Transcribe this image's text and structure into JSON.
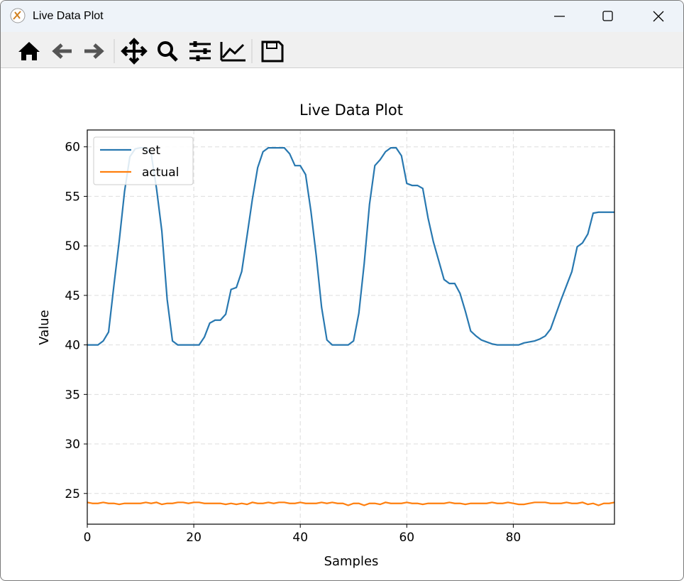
{
  "window": {
    "title": "Live Data Plot"
  },
  "chart_data": {
    "type": "line",
    "title": "Live Data Plot",
    "x_label": "Samples",
    "y_label": "Value",
    "x": [
      0,
      1,
      2,
      3,
      4,
      5,
      6,
      7,
      8,
      9,
      10,
      11,
      12,
      13,
      14,
      15,
      16,
      17,
      18,
      19,
      20,
      21,
      22,
      23,
      24,
      25,
      26,
      27,
      28,
      29,
      30,
      31,
      32,
      33,
      34,
      35,
      36,
      37,
      38,
      39,
      40,
      41,
      42,
      43,
      44,
      45,
      46,
      47,
      48,
      49,
      50,
      51,
      52,
      53,
      54,
      55,
      56,
      57,
      58,
      59,
      60,
      61,
      62,
      63,
      64,
      65,
      66,
      67,
      68,
      69,
      70,
      71,
      72,
      73,
      74,
      75,
      76,
      77,
      78,
      79,
      80,
      81,
      82,
      83,
      84,
      85,
      86,
      87,
      88,
      89,
      90,
      91,
      92,
      93,
      94,
      95,
      96,
      97,
      98,
      99
    ],
    "series": [
      {
        "name": "set",
        "color": "#2878b0",
        "values": [
          40,
          40,
          40,
          40.4,
          41.3,
          46,
          50.5,
          55.5,
          59,
          59.8,
          59.9,
          59.9,
          59.3,
          55.8,
          51.5,
          44.6,
          40.4,
          40,
          40,
          40,
          40,
          40,
          40.8,
          42.2,
          42.5,
          42.5,
          43.1,
          45.6,
          45.8,
          47.4,
          51,
          54.7,
          57.9,
          59.5,
          59.9,
          59.9,
          59.9,
          59.9,
          59.3,
          58.1,
          58.1,
          57.2,
          53.5,
          49,
          43.8,
          40.5,
          40,
          40,
          40,
          40,
          40.4,
          43.2,
          48.2,
          54.2,
          58.1,
          58.7,
          59.5,
          59.9,
          59.9,
          59.1,
          56.3,
          56.1,
          56.1,
          55.8,
          52.8,
          50.4,
          48.5,
          46.6,
          46.2,
          46.2,
          45.2,
          43.4,
          41.4,
          40.9,
          40.5,
          40.3,
          40.1,
          40,
          40,
          40,
          40,
          40,
          40.2,
          40.3,
          40.4,
          40.6,
          40.9,
          41.6,
          43.1,
          44.6,
          46,
          47.4,
          49.9,
          50.3,
          51.2,
          53.3,
          53.4,
          53.4,
          53.4,
          53.4
        ]
      },
      {
        "name": "actual",
        "color": "#ff7f0e",
        "values": [
          24.1,
          24.0,
          24.0,
          24.1,
          24.0,
          24.0,
          23.9,
          24.0,
          24.0,
          24.0,
          24.0,
          24.1,
          24.0,
          24.1,
          23.9,
          24.0,
          24.0,
          24.1,
          24.1,
          24.0,
          24.1,
          24.1,
          24.0,
          24.0,
          24.0,
          24.0,
          23.9,
          24.0,
          23.9,
          24.0,
          23.9,
          24.1,
          24.0,
          24.0,
          24.1,
          24.0,
          24.1,
          24.1,
          24.0,
          24.0,
          24.1,
          24.0,
          24.0,
          24.0,
          24.1,
          24.0,
          24.1,
          24.0,
          24.0,
          23.8,
          24.0,
          24.0,
          23.8,
          24.0,
          24.0,
          23.9,
          24.1,
          24.0,
          24.0,
          24.0,
          24.1,
          24.0,
          24.0,
          23.9,
          24.0,
          24.0,
          24.0,
          24.0,
          24.1,
          24.0,
          24.0,
          23.9,
          24.0,
          24.0,
          24.0,
          24.0,
          24.1,
          24.0,
          24.0,
          24.1,
          24.0,
          23.9,
          23.9,
          24.0,
          24.1,
          24.1,
          24.1,
          24.0,
          24.0,
          24.0,
          24.1,
          24.0,
          24.0,
          24.1,
          23.9,
          24.0,
          23.8,
          24.0,
          24.0,
          24.1
        ]
      }
    ],
    "xlim": [
      0,
      99
    ],
    "ylim": [
      21.9,
      61.7
    ],
    "xticks": [
      0,
      20,
      40,
      60,
      80
    ],
    "yticks": [
      25,
      30,
      35,
      40,
      45,
      50,
      55,
      60
    ],
    "grid": true,
    "legend": "upper-left"
  }
}
